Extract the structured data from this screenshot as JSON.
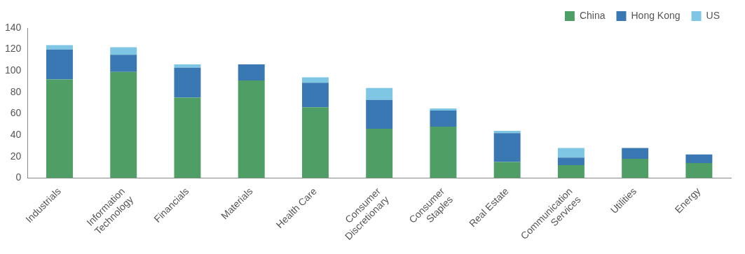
{
  "chart_data": {
    "type": "bar",
    "stacked": true,
    "categories": [
      "Industrials",
      "Information Technology",
      "Financials",
      "Materials",
      "Health Care",
      "Consumer Discretionary",
      "Consumer Staples",
      "Real Estate",
      "Communication Services",
      "Utilities",
      "Energy"
    ],
    "series": [
      {
        "name": "China",
        "color": "#4e9e66",
        "values": [
          92,
          99,
          75,
          91,
          66,
          46,
          48,
          15,
          12,
          18,
          14
        ]
      },
      {
        "name": "Hong Kong",
        "color": "#3a78b4",
        "values": [
          28,
          16,
          28,
          15,
          23,
          27,
          15,
          27,
          7,
          10,
          8
        ]
      },
      {
        "name": "US",
        "color": "#7fc6e4",
        "values": [
          4,
          7,
          3,
          0,
          5,
          11,
          2,
          2,
          9,
          0,
          0
        ]
      }
    ],
    "ylim": [
      0,
      140
    ],
    "yticks": [
      0,
      20,
      40,
      60,
      80,
      100,
      120,
      140
    ],
    "grid": false,
    "legend": "top-right",
    "data_labels": false
  }
}
